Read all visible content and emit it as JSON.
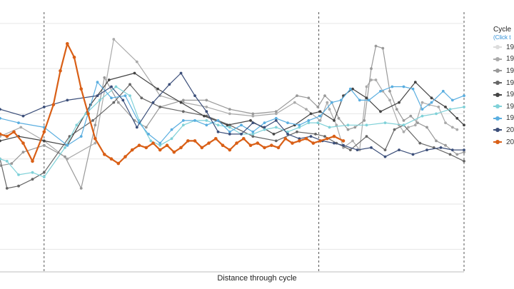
{
  "chart_data": {
    "type": "line",
    "title": "",
    "xlabel": "Distance through cycle",
    "ylabel": "",
    "xlim": [
      0,
      1
    ],
    "ylim": [
      -7,
      4.5
    ],
    "grid": true,
    "legend_position": "right",
    "legend_title": "Cycle",
    "legend_subtitle": "(Click t",
    "phase_markers": [
      0.095,
      0.687,
      1.0
    ],
    "series": [
      {
        "name": "19",
        "color": "#dcdcdc",
        "width": 1.2,
        "points": []
      },
      {
        "name": "19",
        "color": "#aaaaaa",
        "width": 1.2,
        "points": [
          [
            0.0,
            -1.0
          ],
          [
            0.045,
            -0.6
          ],
          [
            0.095,
            -1.2
          ],
          [
            0.145,
            -2.0
          ],
          [
            0.205,
            -1.3
          ],
          [
            0.245,
            3.3
          ],
          [
            0.295,
            2.3
          ],
          [
            0.345,
            0.8
          ],
          [
            0.395,
            0.5
          ],
          [
            0.445,
            0.3
          ],
          [
            0.495,
            0.0
          ],
          [
            0.545,
            -0.1
          ],
          [
            0.595,
            0.0
          ],
          [
            0.635,
            0.5
          ],
          [
            0.66,
            0.2
          ],
          [
            0.69,
            -0.3
          ],
          [
            0.705,
            0.5
          ],
          [
            0.71,
            0.2
          ],
          [
            0.725,
            -0.5
          ],
          [
            0.74,
            -1.5
          ],
          [
            0.76,
            -1.2
          ],
          [
            0.775,
            -1.6
          ],
          [
            0.79,
            1.2
          ],
          [
            0.8,
            1.5
          ],
          [
            0.81,
            1.5
          ],
          [
            0.825,
            1.0
          ],
          [
            0.84,
            0.6
          ],
          [
            0.86,
            -0.5
          ],
          [
            0.87,
            -0.8
          ],
          [
            0.88,
            -0.6
          ],
          [
            0.895,
            -0.5
          ],
          [
            0.91,
            0.5
          ],
          [
            0.925,
            0.4
          ],
          [
            0.945,
            0.3
          ],
          [
            0.96,
            -0.4
          ],
          [
            0.975,
            -0.6
          ],
          [
            0.985,
            -0.7
          ]
        ]
      },
      {
        "name": "19",
        "color": "#999999",
        "width": 1.2,
        "points": [
          [
            0.0,
            -2.3
          ],
          [
            0.025,
            -2.2
          ],
          [
            0.05,
            -1.7
          ],
          [
            0.095,
            -1.4
          ],
          [
            0.14,
            -1.9
          ],
          [
            0.175,
            -3.3
          ],
          [
            0.205,
            -0.5
          ],
          [
            0.225,
            1.6
          ],
          [
            0.255,
            0.5
          ],
          [
            0.29,
            -0.3
          ],
          [
            0.315,
            -0.6
          ],
          [
            0.345,
            0.3
          ],
          [
            0.395,
            0.6
          ],
          [
            0.445,
            0.6
          ],
          [
            0.495,
            0.2
          ],
          [
            0.545,
            0.0
          ],
          [
            0.595,
            0.1
          ],
          [
            0.64,
            0.8
          ],
          [
            0.665,
            0.7
          ],
          [
            0.685,
            0.3
          ],
          [
            0.7,
            0.8
          ],
          [
            0.715,
            0.5
          ],
          [
            0.73,
            -0.2
          ],
          [
            0.75,
            -0.7
          ],
          [
            0.765,
            -0.6
          ],
          [
            0.785,
            -0.3
          ],
          [
            0.8,
            2.0
          ],
          [
            0.81,
            3.0
          ],
          [
            0.825,
            2.9
          ],
          [
            0.84,
            1.0
          ],
          [
            0.855,
            0.2
          ],
          [
            0.87,
            -0.3
          ],
          [
            0.885,
            -0.1
          ],
          [
            0.9,
            -0.4
          ],
          [
            0.92,
            -0.6
          ],
          [
            0.94,
            -1.2
          ],
          [
            0.96,
            -1.4
          ],
          [
            0.985,
            -1.8
          ],
          [
            1.0,
            -1.7
          ]
        ]
      },
      {
        "name": "19",
        "color": "#666666",
        "width": 1.2,
        "points": [
          [
            0.0,
            -2.0
          ],
          [
            0.015,
            -3.3
          ],
          [
            0.04,
            -3.2
          ],
          [
            0.07,
            -2.9
          ],
          [
            0.095,
            -2.6
          ],
          [
            0.15,
            -1.0
          ],
          [
            0.2,
            -0.3
          ],
          [
            0.245,
            0.5
          ],
          [
            0.28,
            1.3
          ],
          [
            0.305,
            0.7
          ],
          [
            0.345,
            0.3
          ],
          [
            0.395,
            0.1
          ],
          [
            0.445,
            -0.1
          ],
          [
            0.495,
            -0.5
          ],
          [
            0.545,
            -1.0
          ],
          [
            0.595,
            -1.2
          ],
          [
            0.64,
            -0.8
          ],
          [
            0.68,
            -0.9
          ],
          [
            0.7,
            -1.0
          ],
          [
            0.725,
            -1.3
          ],
          [
            0.755,
            -1.6
          ],
          [
            0.79,
            -1.0
          ],
          [
            0.83,
            -1.6
          ],
          [
            0.85,
            -0.7
          ],
          [
            0.87,
            -0.5
          ],
          [
            0.905,
            -1.3
          ],
          [
            0.935,
            -1.5
          ],
          [
            0.97,
            -1.8
          ],
          [
            1.0,
            -2.1
          ]
        ]
      },
      {
        "name": "19",
        "color": "#444444",
        "width": 1.2,
        "points": [
          [
            0.0,
            -1.2
          ],
          [
            0.04,
            -1.0
          ],
          [
            0.095,
            -1.2
          ],
          [
            0.145,
            -1.4
          ],
          [
            0.195,
            0.4
          ],
          [
            0.235,
            1.5
          ],
          [
            0.29,
            1.8
          ],
          [
            0.34,
            1.1
          ],
          [
            0.39,
            0.5
          ],
          [
            0.44,
            -0.1
          ],
          [
            0.49,
            -0.5
          ],
          [
            0.54,
            -0.3
          ],
          [
            0.59,
            -0.9
          ],
          [
            0.635,
            -0.5
          ],
          [
            0.67,
            0.0
          ],
          [
            0.69,
            0.1
          ],
          [
            0.72,
            -0.3
          ],
          [
            0.74,
            0.8
          ],
          [
            0.76,
            1.1
          ],
          [
            0.79,
            0.7
          ],
          [
            0.82,
            0.1
          ],
          [
            0.86,
            0.5
          ],
          [
            0.895,
            1.4
          ],
          [
            0.93,
            0.7
          ],
          [
            0.96,
            0.3
          ],
          [
            0.985,
            -0.2
          ],
          [
            1.0,
            -0.5
          ]
        ]
      },
      {
        "name": "19",
        "color": "#7fd1d8",
        "width": 1.2,
        "points": [
          [
            0.0,
            -2.0
          ],
          [
            0.015,
            -2.1
          ],
          [
            0.04,
            -2.7
          ],
          [
            0.07,
            -2.6
          ],
          [
            0.095,
            -2.8
          ],
          [
            0.14,
            -1.5
          ],
          [
            0.165,
            -0.5
          ],
          [
            0.185,
            0.0
          ],
          [
            0.215,
            0.6
          ],
          [
            0.25,
            1.2
          ],
          [
            0.28,
            0.8
          ],
          [
            0.3,
            -0.3
          ],
          [
            0.325,
            -1.2
          ],
          [
            0.345,
            -1.4
          ],
          [
            0.37,
            -1.1
          ],
          [
            0.395,
            -0.5
          ],
          [
            0.42,
            -0.3
          ],
          [
            0.445,
            -0.3
          ],
          [
            0.47,
            -0.5
          ],
          [
            0.495,
            -0.6
          ],
          [
            0.52,
            -0.9
          ],
          [
            0.545,
            -0.9
          ],
          [
            0.57,
            -0.7
          ],
          [
            0.595,
            -0.6
          ],
          [
            0.62,
            -0.8
          ],
          [
            0.645,
            -0.6
          ],
          [
            0.665,
            -0.4
          ],
          [
            0.685,
            -0.4
          ],
          [
            0.71,
            -0.6
          ],
          [
            0.75,
            -0.5
          ],
          [
            0.79,
            -0.5
          ],
          [
            0.83,
            -0.4
          ],
          [
            0.87,
            -0.5
          ],
          [
            0.91,
            -0.1
          ],
          [
            0.94,
            0.0
          ],
          [
            0.97,
            0.2
          ],
          [
            1.0,
            0.3
          ]
        ]
      },
      {
        "name": "19",
        "color": "#5aaee0",
        "width": 1.2,
        "points": [
          [
            0.0,
            -0.2
          ],
          [
            0.04,
            -0.4
          ],
          [
            0.095,
            -0.6
          ],
          [
            0.145,
            -1.4
          ],
          [
            0.175,
            -1.0
          ],
          [
            0.21,
            1.4
          ],
          [
            0.24,
            0.7
          ],
          [
            0.27,
            0.8
          ],
          [
            0.3,
            -0.4
          ],
          [
            0.32,
            -0.9
          ],
          [
            0.345,
            -1.3
          ],
          [
            0.37,
            -0.7
          ],
          [
            0.395,
            -0.3
          ],
          [
            0.42,
            -0.3
          ],
          [
            0.445,
            -0.5
          ],
          [
            0.47,
            -0.3
          ],
          [
            0.495,
            -0.8
          ],
          [
            0.52,
            -0.5
          ],
          [
            0.545,
            -0.8
          ],
          [
            0.57,
            -0.4
          ],
          [
            0.595,
            -0.2
          ],
          [
            0.62,
            -0.4
          ],
          [
            0.645,
            -0.5
          ],
          [
            0.665,
            -0.3
          ],
          [
            0.69,
            -0.1
          ],
          [
            0.715,
            0.5
          ],
          [
            0.735,
            0.6
          ],
          [
            0.755,
            1.1
          ],
          [
            0.775,
            0.6
          ],
          [
            0.795,
            0.6
          ],
          [
            0.82,
            1.0
          ],
          [
            0.845,
            1.2
          ],
          [
            0.87,
            1.2
          ],
          [
            0.89,
            1.1
          ],
          [
            0.91,
            0.2
          ],
          [
            0.93,
            0.5
          ],
          [
            0.955,
            1.0
          ],
          [
            0.975,
            0.6
          ],
          [
            1.0,
            0.8
          ]
        ]
      },
      {
        "name": "20",
        "color": "#3c4f7a",
        "width": 1.2,
        "points": [
          [
            0.0,
            0.2
          ],
          [
            0.05,
            -0.1
          ],
          [
            0.095,
            0.3
          ],
          [
            0.145,
            0.6
          ],
          [
            0.21,
            0.8
          ],
          [
            0.24,
            1.2
          ],
          [
            0.265,
            0.6
          ],
          [
            0.295,
            -0.6
          ],
          [
            0.33,
            0.5
          ],
          [
            0.365,
            1.3
          ],
          [
            0.39,
            1.8
          ],
          [
            0.42,
            0.8
          ],
          [
            0.445,
            0.1
          ],
          [
            0.47,
            -0.8
          ],
          [
            0.495,
            -0.9
          ],
          [
            0.52,
            -0.9
          ],
          [
            0.545,
            -0.4
          ],
          [
            0.57,
            -0.6
          ],
          [
            0.595,
            -0.3
          ],
          [
            0.62,
            -0.9
          ],
          [
            0.645,
            -1.1
          ],
          [
            0.67,
            -1.0
          ],
          [
            0.695,
            -1.2
          ],
          [
            0.72,
            -1.3
          ],
          [
            0.74,
            -1.4
          ],
          [
            0.77,
            -1.6
          ],
          [
            0.8,
            -1.5
          ],
          [
            0.83,
            -1.9
          ],
          [
            0.86,
            -1.6
          ],
          [
            0.89,
            -1.8
          ],
          [
            0.92,
            -1.6
          ],
          [
            0.95,
            -1.5
          ],
          [
            0.975,
            -1.6
          ],
          [
            1.0,
            -1.6
          ]
        ]
      },
      {
        "name": "20",
        "color": "#d95f16",
        "width": 2.2,
        "points": [
          [
            0.0,
            -0.9
          ],
          [
            0.015,
            -1.0
          ],
          [
            0.03,
            -0.8
          ],
          [
            0.05,
            -1.3
          ],
          [
            0.07,
            -2.1
          ],
          [
            0.095,
            -0.8
          ],
          [
            0.115,
            0.4
          ],
          [
            0.13,
            1.9
          ],
          [
            0.145,
            3.1
          ],
          [
            0.16,
            2.5
          ],
          [
            0.175,
            1.1
          ],
          [
            0.19,
            0.0
          ],
          [
            0.205,
            -1.1
          ],
          [
            0.225,
            -1.8
          ],
          [
            0.24,
            -2.0
          ],
          [
            0.255,
            -2.2
          ],
          [
            0.27,
            -1.9
          ],
          [
            0.285,
            -1.6
          ],
          [
            0.3,
            -1.4
          ],
          [
            0.315,
            -1.5
          ],
          [
            0.33,
            -1.3
          ],
          [
            0.345,
            -1.6
          ],
          [
            0.36,
            -1.4
          ],
          [
            0.375,
            -1.7
          ],
          [
            0.39,
            -1.5
          ],
          [
            0.405,
            -1.2
          ],
          [
            0.42,
            -1.2
          ],
          [
            0.435,
            -1.5
          ],
          [
            0.45,
            -1.3
          ],
          [
            0.465,
            -1.1
          ],
          [
            0.48,
            -1.4
          ],
          [
            0.495,
            -1.6
          ],
          [
            0.51,
            -1.3
          ],
          [
            0.525,
            -1.1
          ],
          [
            0.54,
            -1.4
          ],
          [
            0.555,
            -1.3
          ],
          [
            0.57,
            -1.5
          ],
          [
            0.585,
            -1.4
          ],
          [
            0.6,
            -1.5
          ],
          [
            0.615,
            -1.1
          ],
          [
            0.63,
            -1.3
          ],
          [
            0.645,
            -1.2
          ],
          [
            0.66,
            -1.1
          ],
          [
            0.675,
            -1.3
          ],
          [
            0.69,
            -1.2
          ],
          [
            0.705,
            -1.1
          ],
          [
            0.72,
            -1.0
          ],
          [
            0.74,
            -1.2
          ]
        ]
      }
    ]
  }
}
